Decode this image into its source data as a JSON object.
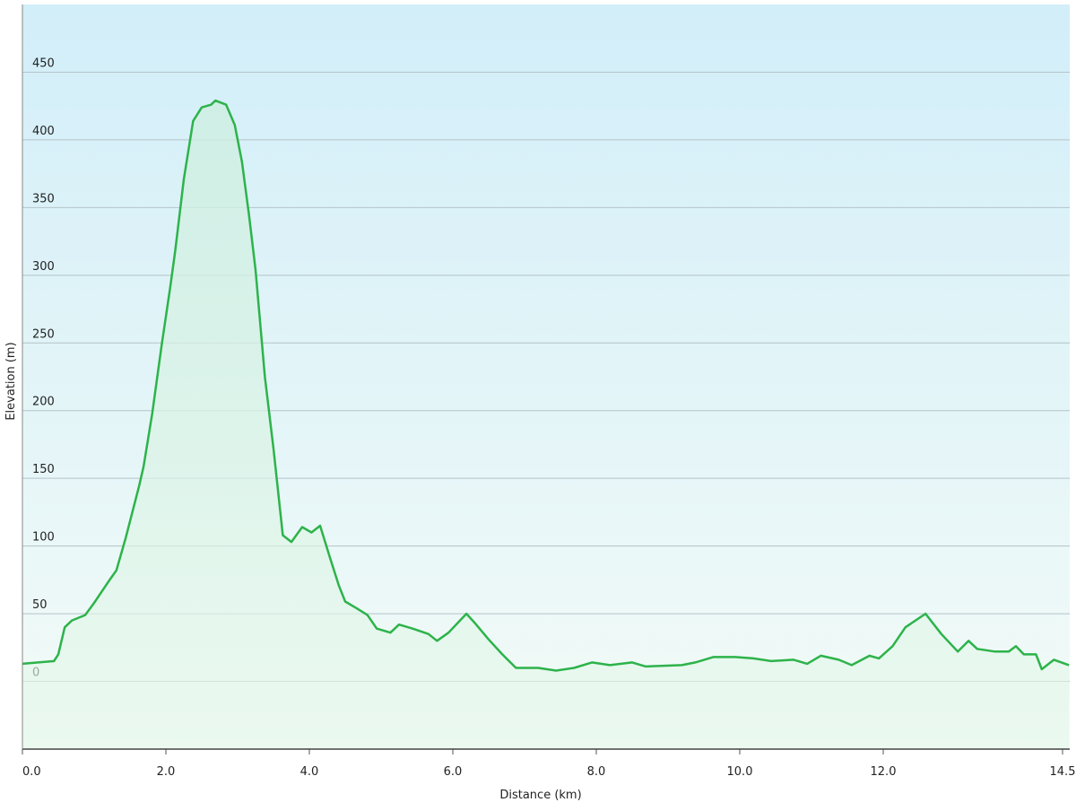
{
  "chart_data": {
    "type": "area",
    "xlabel": "Distance  (km)",
    "ylabel": "Elevation (m)",
    "x": [
      0,
      0.44,
      0.5,
      0.59,
      0.69,
      0.875,
      1.0,
      1.19,
      1.31,
      1.44,
      1.63,
      1.69,
      1.81,
      1.94,
      2.06,
      2.13,
      2.25,
      2.38,
      2.5,
      2.63,
      2.69,
      2.84,
      2.96,
      3.06,
      3.16,
      3.25,
      3.38,
      3.5,
      3.63,
      3.75,
      3.9,
      4.03,
      4.15,
      4.29,
      4.41,
      4.5,
      4.66,
      4.81,
      4.94,
      5.13,
      5.25,
      5.44,
      5.66,
      5.78,
      5.94,
      6.19,
      6.31,
      6.5,
      6.69,
      6.88,
      7.19,
      7.44,
      7.69,
      7.94,
      8.19,
      8.5,
      8.69,
      9.19,
      9.38,
      9.63,
      9.94,
      10.19,
      10.44,
      10.75,
      10.94,
      11.13,
      11.38,
      11.56,
      11.81,
      11.94,
      12.13,
      12.31,
      12.59,
      12.81,
      13.04,
      13.19,
      13.31,
      13.56,
      13.75,
      13.85,
      13.96,
      14.13,
      14.21,
      14.38,
      14.59
    ],
    "values": [
      13,
      15,
      20,
      40,
      45,
      49,
      58,
      73,
      82,
      106,
      145,
      159,
      198,
      248,
      291,
      318,
      371,
      414,
      424,
      426,
      429,
      426,
      411,
      384,
      344,
      304,
      225,
      172,
      108,
      103,
      114,
      110,
      115,
      91,
      71,
      59,
      54,
      49,
      39,
      36,
      42,
      39,
      35,
      30,
      36,
      50,
      43,
      31,
      20,
      10,
      10,
      8,
      10,
      14,
      12,
      14,
      11,
      12,
      14,
      18,
      18,
      17,
      15,
      16,
      13,
      19,
      16,
      12,
      19,
      17,
      26,
      40,
      50,
      35,
      22,
      30,
      24,
      22,
      22,
      26,
      20,
      20,
      9,
      16,
      12
    ],
    "color": "#2db34a",
    "xlim": [
      0,
      14.6
    ],
    "ylim": [
      -50,
      500
    ],
    "xticks": [
      {
        "value": 0,
        "label": "0.0"
      },
      {
        "value": 2,
        "label": "2.0"
      },
      {
        "value": 4,
        "label": "4.0"
      },
      {
        "value": 6,
        "label": "6.0"
      },
      {
        "value": 8,
        "label": "8.0"
      },
      {
        "value": 10,
        "label": "10.0"
      },
      {
        "value": 12,
        "label": "12.0"
      },
      14.5
    ],
    "yticks": [
      0,
      50,
      100,
      150,
      200,
      250,
      300,
      350,
      400,
      450
    ],
    "grid": true
  }
}
